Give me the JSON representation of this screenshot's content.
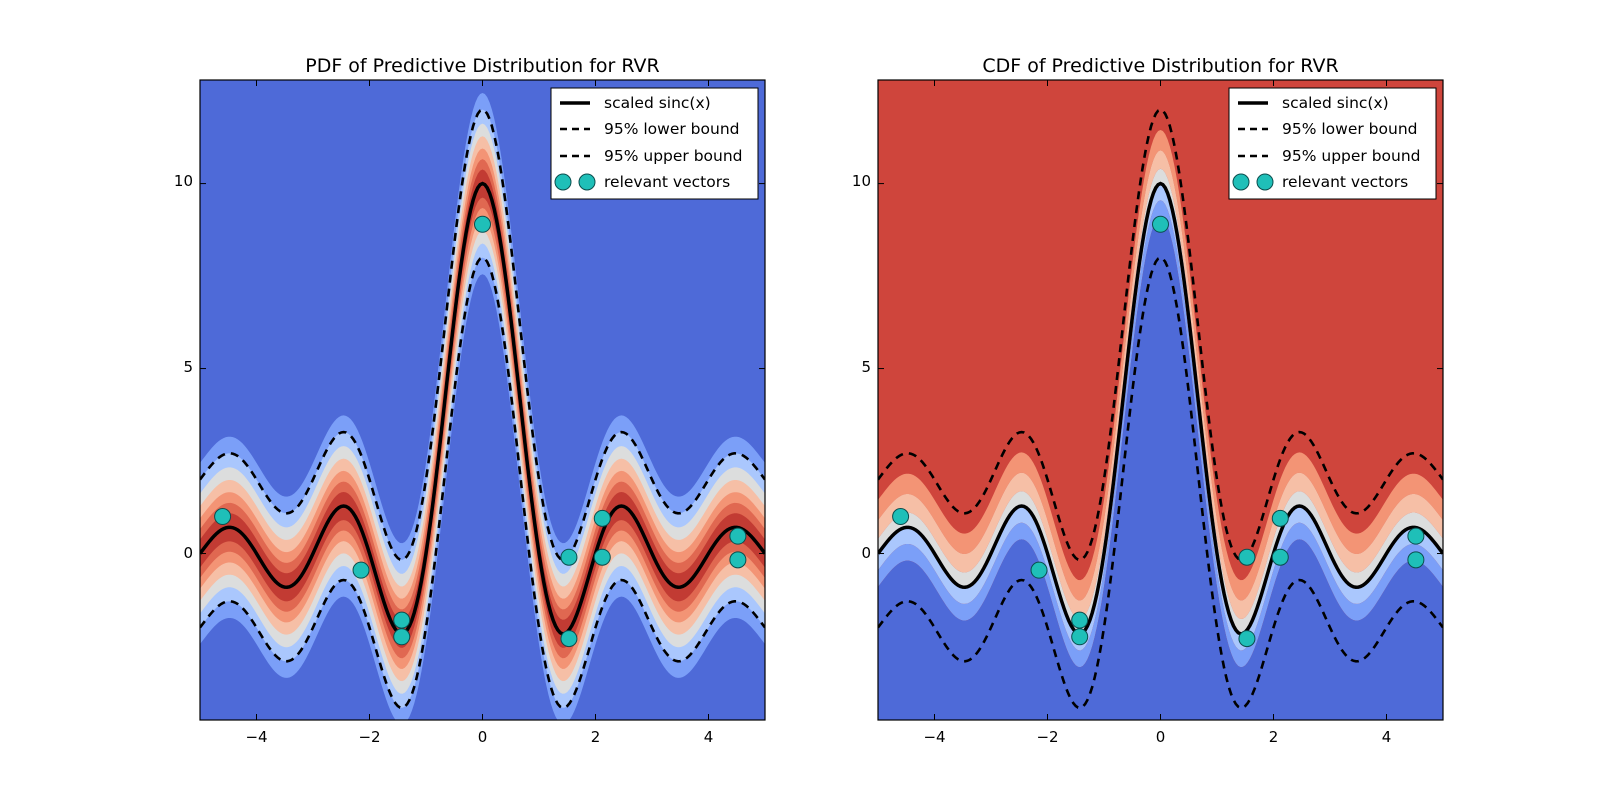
{
  "chart_data": [
    {
      "type": "contour",
      "title": "PDF of Predictive Distribution for RVR",
      "xlabel": "",
      "ylabel": "",
      "xlim": [
        -5,
        5
      ],
      "ylim": [
        -4.5,
        12.8
      ],
      "xticks": [
        -4,
        -2,
        0,
        2,
        4
      ],
      "yticks": [
        0,
        5,
        10
      ],
      "xtick_labels": [
        "−4",
        "−2",
        "0",
        "2",
        "4"
      ],
      "ytick_labels": [
        "0",
        "5",
        "10"
      ],
      "grid": false,
      "colormap": "coolwarm",
      "curve": {
        "name": "scaled sinc(x)",
        "function": "10*sin(pi*x)/(pi*x)"
      },
      "band_halfwidth": 2,
      "legend": {
        "position": "top-right",
        "entries": [
          "scaled sinc(x)",
          "95% lower bound",
          "95% upper bound",
          "relevant vectors"
        ]
      },
      "relevant_vectors": {
        "x": [
          -4.6,
          -2.15,
          -1.43,
          -1.43,
          0.0,
          1.53,
          1.53,
          2.12,
          2.12,
          4.52,
          4.52
        ],
        "y": [
          1.0,
          -0.45,
          -1.8,
          -2.25,
          8.9,
          -0.1,
          -2.3,
          0.95,
          -0.1,
          0.47,
          -0.17
        ]
      }
    },
    {
      "type": "contour",
      "title": "CDF of Predictive Distribution for RVR",
      "xlabel": "",
      "ylabel": "",
      "xlim": [
        -5,
        5
      ],
      "ylim": [
        -4.5,
        12.8
      ],
      "xticks": [
        -4,
        -2,
        0,
        2,
        4
      ],
      "yticks": [
        0,
        5,
        10
      ],
      "xtick_labels": [
        "−4",
        "−2",
        "0",
        "2",
        "4"
      ],
      "ytick_labels": [
        "0",
        "5",
        "10"
      ],
      "grid": false,
      "colormap": "coolwarm",
      "curve": {
        "name": "scaled sinc(x)",
        "function": "10*sin(pi*x)/(pi*x)"
      },
      "band_halfwidth": 2,
      "legend": {
        "position": "top-right",
        "entries": [
          "scaled sinc(x)",
          "95% lower bound",
          "95% upper bound",
          "relevant vectors"
        ]
      },
      "relevant_vectors": {
        "x": [
          -4.6,
          -2.15,
          -1.43,
          -1.43,
          0.0,
          1.53,
          1.53,
          2.12,
          2.12,
          4.52,
          4.52
        ],
        "y": [
          1.0,
          -0.45,
          -1.8,
          -2.25,
          8.9,
          -0.1,
          -2.3,
          0.95,
          -0.1,
          0.47,
          -0.17
        ]
      }
    }
  ],
  "colors": {
    "pdf_levels": [
      "#4e6ad8",
      "#7b9ff8",
      "#aac7fd",
      "#dcdddd",
      "#f6bfa6",
      "#f39475",
      "#e06851",
      "#c23b33"
    ],
    "cdf_levels": [
      "#4e6ad8",
      "#7b9ff8",
      "#aac7fd",
      "#dcdddd",
      "#f6bfa6",
      "#f39475",
      "#cf453c"
    ],
    "curve": "#000000",
    "points_fill": "#1fbfb8",
    "points_edge": "#0b4d4d"
  }
}
